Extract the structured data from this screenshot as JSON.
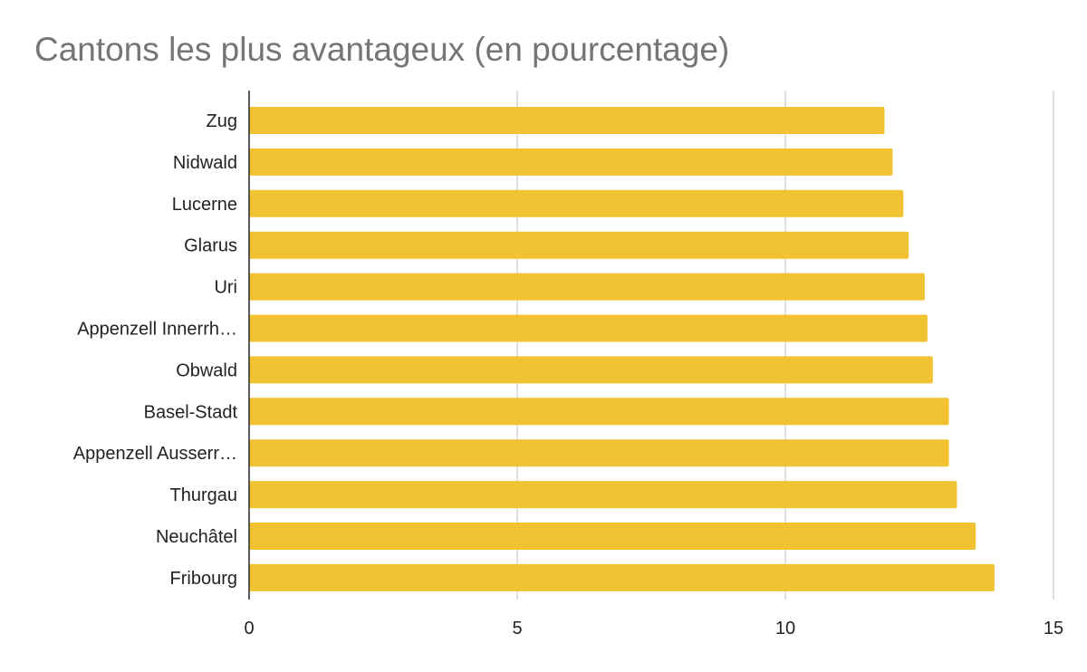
{
  "chart_data": {
    "type": "bar",
    "orientation": "horizontal",
    "title": "Cantons les plus avantageux (en pourcentage)",
    "xlabel": "",
    "ylabel": "",
    "categories": [
      "Zug",
      "Nidwald",
      "Lucerne",
      "Glarus",
      "Uri",
      "Appenzell Innerrh…",
      "Obwald",
      "Basel-Stadt",
      "Appenzell Ausserr…",
      "Thurgau",
      "Neuchâtel",
      "Fribourg"
    ],
    "values": [
      11.85,
      12.0,
      12.2,
      12.3,
      12.6,
      12.65,
      12.75,
      13.05,
      13.05,
      13.2,
      13.55,
      13.9
    ],
    "xlim": [
      0,
      15
    ],
    "xticks": [
      "0",
      "5",
      "10",
      "15"
    ],
    "xtick_values": [
      0,
      5,
      10,
      15
    ],
    "grid": true,
    "legend": "none",
    "bar_color": "#f1c232",
    "grid_color": "#cccccc",
    "axis_color": "#333333"
  }
}
